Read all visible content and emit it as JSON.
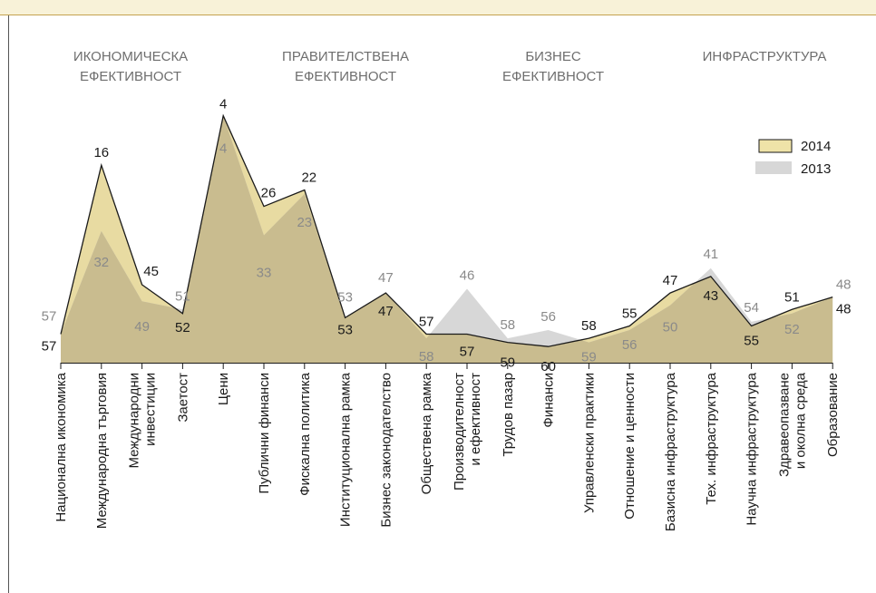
{
  "chart_data": {
    "type": "area",
    "groups": [
      {
        "lines": [
          "ИКОНОМИЧЕСКА",
          "ЕФЕКТИВНОСТ"
        ]
      },
      {
        "lines": [
          "ПРАВИТЕЛСТВЕНА",
          "ЕФЕКТИВНОСТ"
        ]
      },
      {
        "lines": [
          "БИЗНЕС",
          "ЕФЕКТИВНОСТ"
        ]
      },
      {
        "lines": [
          "ИНФРАСТРУКТУРА"
        ]
      }
    ],
    "categories": [
      [
        "Национална икономика"
      ],
      [
        "Международна търговия"
      ],
      [
        "Международни",
        "инвестиции"
      ],
      [
        "Заетост"
      ],
      [
        "Цени"
      ],
      [
        "Публични финанси"
      ],
      [
        "Фискална политика"
      ],
      [
        "Институционална рамка"
      ],
      [
        "Бизнес законодателство"
      ],
      [
        "Обществена рамка"
      ],
      [
        "Производителност",
        "и ефективност"
      ],
      [
        "Трудов пазар"
      ],
      [
        "Финанси"
      ],
      [
        "Управленски практики"
      ],
      [
        "Отношение и ценности"
      ],
      [
        "Базисна инфраструктура"
      ],
      [
        "Тех. инфраструктура"
      ],
      [
        "Научна инфраструктура"
      ],
      [
        "Здравеопазване",
        "и околна среда"
      ],
      [
        "Образование"
      ]
    ],
    "series": [
      {
        "name": "2014",
        "color": "#c9bc8f",
        "legend_color": "#efe3a8",
        "values": [
          57,
          16,
          45,
          52,
          4,
          26,
          22,
          53,
          47,
          57,
          57,
          59,
          60,
          58,
          55,
          47,
          43,
          55,
          51,
          48
        ]
      },
      {
        "name": "2013",
        "color": "#d7d7d7",
        "values": [
          57,
          32,
          49,
          51,
          4,
          33,
          23,
          53,
          47,
          58,
          46,
          58,
          56,
          59,
          56,
          50,
          41,
          54,
          52,
          48
        ]
      }
    ],
    "y_axis": {
      "inverted": true,
      "range": [
        1,
        67
      ],
      "visible": false
    },
    "grid": false,
    "legend_position": "top-right",
    "overlap_color": "#e8dba2"
  }
}
